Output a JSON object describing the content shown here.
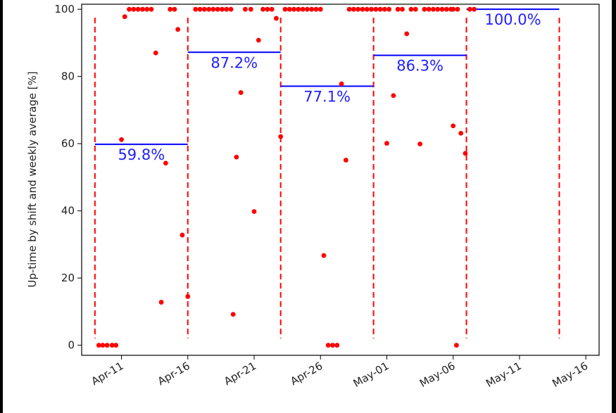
{
  "chart_data": {
    "type": "scatter",
    "title": "",
    "xlabel": "",
    "ylabel": "Up-time by shift and weekly average [%]",
    "xlim": [
      "2021-04-08T00:00",
      "2021-05-17T00:00"
    ],
    "ylim": [
      -3,
      101.5
    ],
    "x_ticks": [
      {
        "date": "2021-04-11",
        "label": "Apr-11"
      },
      {
        "date": "2021-04-16",
        "label": "Apr-16"
      },
      {
        "date": "2021-04-21",
        "label": "Apr-21"
      },
      {
        "date": "2021-04-26",
        "label": "Apr-26"
      },
      {
        "date": "2021-05-01",
        "label": "May-01"
      },
      {
        "date": "2021-05-06",
        "label": "May-06"
      },
      {
        "date": "2021-05-11",
        "label": "May-11"
      },
      {
        "date": "2021-05-16",
        "label": "May-16"
      }
    ],
    "y_ticks": [
      0,
      20,
      40,
      60,
      80,
      100
    ],
    "grid": false,
    "colors": {
      "points": "#ff0000",
      "week_bounds": "#ff0000",
      "averages": "#0000ff",
      "average_labels": "#1f1fff"
    },
    "week_boundaries": [
      "2021-04-09T00:00",
      "2021-04-16T00:00",
      "2021-04-23T00:00",
      "2021-04-30T00:00",
      "2021-05-07T00:00",
      "2021-05-14T00:00"
    ],
    "weekly_averages": [
      {
        "start": "2021-04-09T00:00",
        "end": "2021-04-16T00:00",
        "value": 59.8,
        "label": "59.8%"
      },
      {
        "start": "2021-04-16T00:00",
        "end": "2021-04-23T00:00",
        "value": 87.2,
        "label": "87.2%"
      },
      {
        "start": "2021-04-23T00:00",
        "end": "2021-04-30T00:00",
        "value": 77.1,
        "label": "77.1%"
      },
      {
        "start": "2021-04-30T00:00",
        "end": "2021-05-07T00:00",
        "value": 86.3,
        "label": "86.3%"
      },
      {
        "start": "2021-05-07T00:00",
        "end": "2021-05-14T00:00",
        "value": 100.0,
        "label": "100.0%"
      }
    ],
    "series": [
      {
        "points": [
          [
            "2021-04-09T07:00",
            0
          ],
          [
            "2021-04-09T14:00",
            0
          ],
          [
            "2021-04-09T22:00",
            0
          ],
          [
            "2021-04-10T07:00",
            0
          ],
          [
            "2021-04-10T14:00",
            0
          ],
          [
            "2021-04-11T00:00",
            61.2
          ],
          [
            "2021-04-11T06:00",
            97.8
          ],
          [
            "2021-04-11T14:00",
            100
          ],
          [
            "2021-04-11T22:00",
            100
          ],
          [
            "2021-04-12T06:00",
            100
          ],
          [
            "2021-04-12T14:00",
            100
          ],
          [
            "2021-04-12T22:00",
            100
          ],
          [
            "2021-04-13T06:00",
            100
          ],
          [
            "2021-04-13T14:00",
            87
          ],
          [
            "2021-04-14T00:00",
            12.8
          ],
          [
            "2021-04-14T08:00",
            54.2
          ],
          [
            "2021-04-14T16:00",
            100
          ],
          [
            "2021-04-15T00:00",
            100
          ],
          [
            "2021-04-15T06:00",
            94
          ],
          [
            "2021-04-15T14:00",
            32.8
          ],
          [
            "2021-04-16T00:00",
            14.5
          ],
          [
            "2021-04-16T14:00",
            100
          ],
          [
            "2021-04-16T22:00",
            100
          ],
          [
            "2021-04-17T06:00",
            100
          ],
          [
            "2021-04-17T14:00",
            100
          ],
          [
            "2021-04-17T22:00",
            100
          ],
          [
            "2021-04-18T06:00",
            100
          ],
          [
            "2021-04-18T14:00",
            100
          ],
          [
            "2021-04-18T22:00",
            100
          ],
          [
            "2021-04-19T06:00",
            100
          ],
          [
            "2021-04-19T10:00",
            9.2
          ],
          [
            "2021-04-19T16:00",
            56
          ],
          [
            "2021-04-20T00:00",
            75.2
          ],
          [
            "2021-04-20T08:00",
            100
          ],
          [
            "2021-04-20T18:00",
            100
          ],
          [
            "2021-04-21T00:00",
            39.8
          ],
          [
            "2021-04-21T08:00",
            90.8
          ],
          [
            "2021-04-21T16:00",
            100
          ],
          [
            "2021-04-22T00:00",
            100
          ],
          [
            "2021-04-22T08:00",
            100
          ],
          [
            "2021-04-22T16:00",
            97.3
          ],
          [
            "2021-04-23T00:00",
            62.1
          ],
          [
            "2021-04-23T08:00",
            100
          ],
          [
            "2021-04-23T16:00",
            100
          ],
          [
            "2021-04-24T00:00",
            100
          ],
          [
            "2021-04-24T08:00",
            100
          ],
          [
            "2021-04-24T16:00",
            100
          ],
          [
            "2021-04-25T00:00",
            100
          ],
          [
            "2021-04-25T08:00",
            100
          ],
          [
            "2021-04-25T16:00",
            100
          ],
          [
            "2021-04-26T00:00",
            100
          ],
          [
            "2021-04-26T06:00",
            26.7
          ],
          [
            "2021-04-26T14:00",
            0
          ],
          [
            "2021-04-26T22:00",
            0
          ],
          [
            "2021-04-27T06:00",
            0
          ],
          [
            "2021-04-27T14:00",
            77.8
          ],
          [
            "2021-04-27T22:00",
            55.1
          ],
          [
            "2021-04-28T04:00",
            100
          ],
          [
            "2021-04-28T12:00",
            100
          ],
          [
            "2021-04-28T20:00",
            100
          ],
          [
            "2021-04-29T04:00",
            100
          ],
          [
            "2021-04-29T12:00",
            100
          ],
          [
            "2021-04-29T20:00",
            100
          ],
          [
            "2021-04-30T04:00",
            100
          ],
          [
            "2021-04-30T12:00",
            100
          ],
          [
            "2021-04-30T20:00",
            100
          ],
          [
            "2021-05-01T04:00",
            100
          ],
          [
            "2021-05-01T00:00",
            60.1
          ],
          [
            "2021-05-01T12:00",
            74.3
          ],
          [
            "2021-05-01T20:00",
            100
          ],
          [
            "2021-05-02T04:00",
            100
          ],
          [
            "2021-05-02T12:00",
            92.7
          ],
          [
            "2021-05-02T20:00",
            100
          ],
          [
            "2021-05-03T04:00",
            100
          ],
          [
            "2021-05-03T12:00",
            59.9
          ],
          [
            "2021-05-03T20:00",
            100
          ],
          [
            "2021-05-04T04:00",
            100
          ],
          [
            "2021-05-04T12:00",
            100
          ],
          [
            "2021-05-04T20:00",
            100
          ],
          [
            "2021-05-05T04:00",
            100
          ],
          [
            "2021-05-05T12:00",
            100
          ],
          [
            "2021-05-05T20:00",
            100
          ],
          [
            "2021-05-06T00:00",
            100
          ],
          [
            "2021-05-06T08:00",
            100
          ],
          [
            "2021-05-06T00:00",
            65.3
          ],
          [
            "2021-05-06T06:00",
            0
          ],
          [
            "2021-05-06T14:00",
            63.1
          ],
          [
            "2021-05-06T22:00",
            57.1
          ],
          [
            "2021-05-07T06:00",
            100
          ],
          [
            "2021-05-07T14:00",
            100
          ]
        ]
      }
    ]
  }
}
